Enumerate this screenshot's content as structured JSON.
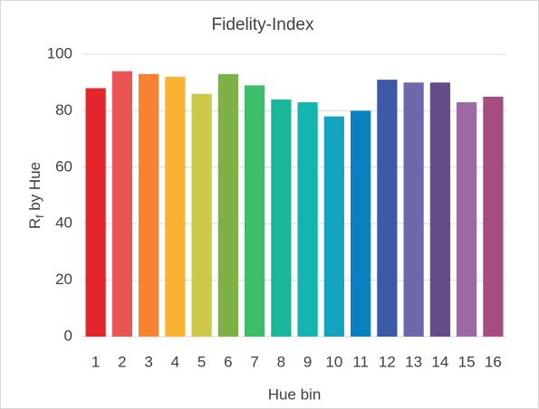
{
  "chart_data": {
    "type": "bar",
    "title": "Fidelity-Index",
    "xlabel": "Hue bin",
    "ylabel": {
      "text": "R",
      "subscript": "f",
      "suffix": " by Hue"
    },
    "categories": [
      "1",
      "2",
      "3",
      "4",
      "5",
      "6",
      "7",
      "8",
      "9",
      "10",
      "11",
      "12",
      "13",
      "14",
      "15",
      "16"
    ],
    "values": [
      88,
      94,
      93,
      92,
      86,
      93,
      89,
      84,
      83,
      78,
      80,
      91,
      90,
      90,
      83,
      85
    ],
    "colors": [
      "#e4262c",
      "#ea5455",
      "#f58331",
      "#fbb131",
      "#cbc84a",
      "#7bb145",
      "#3dbd6b",
      "#18b79a",
      "#14b5b0",
      "#14a3be",
      "#0a80c0",
      "#3d5aa7",
      "#6b68ae",
      "#634c88",
      "#9b6aa3",
      "#a54c80"
    ],
    "ylim": [
      0,
      100
    ],
    "yticks": [
      0,
      20,
      40,
      60,
      80,
      100
    ],
    "grid": true
  }
}
